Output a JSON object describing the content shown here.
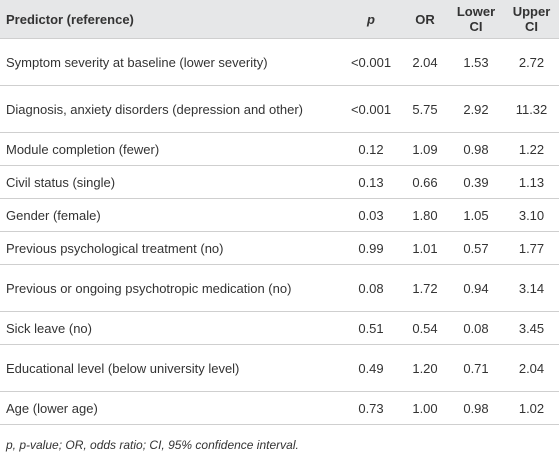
{
  "table": {
    "header": [
      "Predictor (reference)",
      "p",
      "OR",
      "Lower CI",
      "Upper CI"
    ],
    "rows": [
      [
        "Symptom severity at baseline (lower severity)",
        "<0.001",
        "2.04",
        "1.53",
        "2.72"
      ],
      [
        "Diagnosis, anxiety disorders (depression and other)",
        "<0.001",
        "5.75",
        "2.92",
        "11.32"
      ],
      [
        "Module completion (fewer)",
        "0.12",
        "1.09",
        "0.98",
        "1.22"
      ],
      [
        "Civil status (single)",
        "0.13",
        "0.66",
        "0.39",
        "1.13"
      ],
      [
        "Gender (female)",
        "0.03",
        "1.80",
        "1.05",
        "3.10"
      ],
      [
        "Previous psychological treatment (no)",
        "0.99",
        "1.01",
        "0.57",
        "1.77"
      ],
      [
        "Previous or ongoing psychotropic medication (no)",
        "0.08",
        "1.72",
        "0.94",
        "3.14"
      ],
      [
        "Sick leave (no)",
        "0.51",
        "0.54",
        "0.08",
        "3.45"
      ],
      [
        "Educational level (below university level)",
        "0.49",
        "1.20",
        "0.71",
        "2.04"
      ],
      [
        "Age (lower age)",
        "0.73",
        "1.00",
        "0.98",
        "1.02"
      ]
    ],
    "footnote": "p, p-value; OR, odds ratio; CI, 95% confidence interval."
  }
}
